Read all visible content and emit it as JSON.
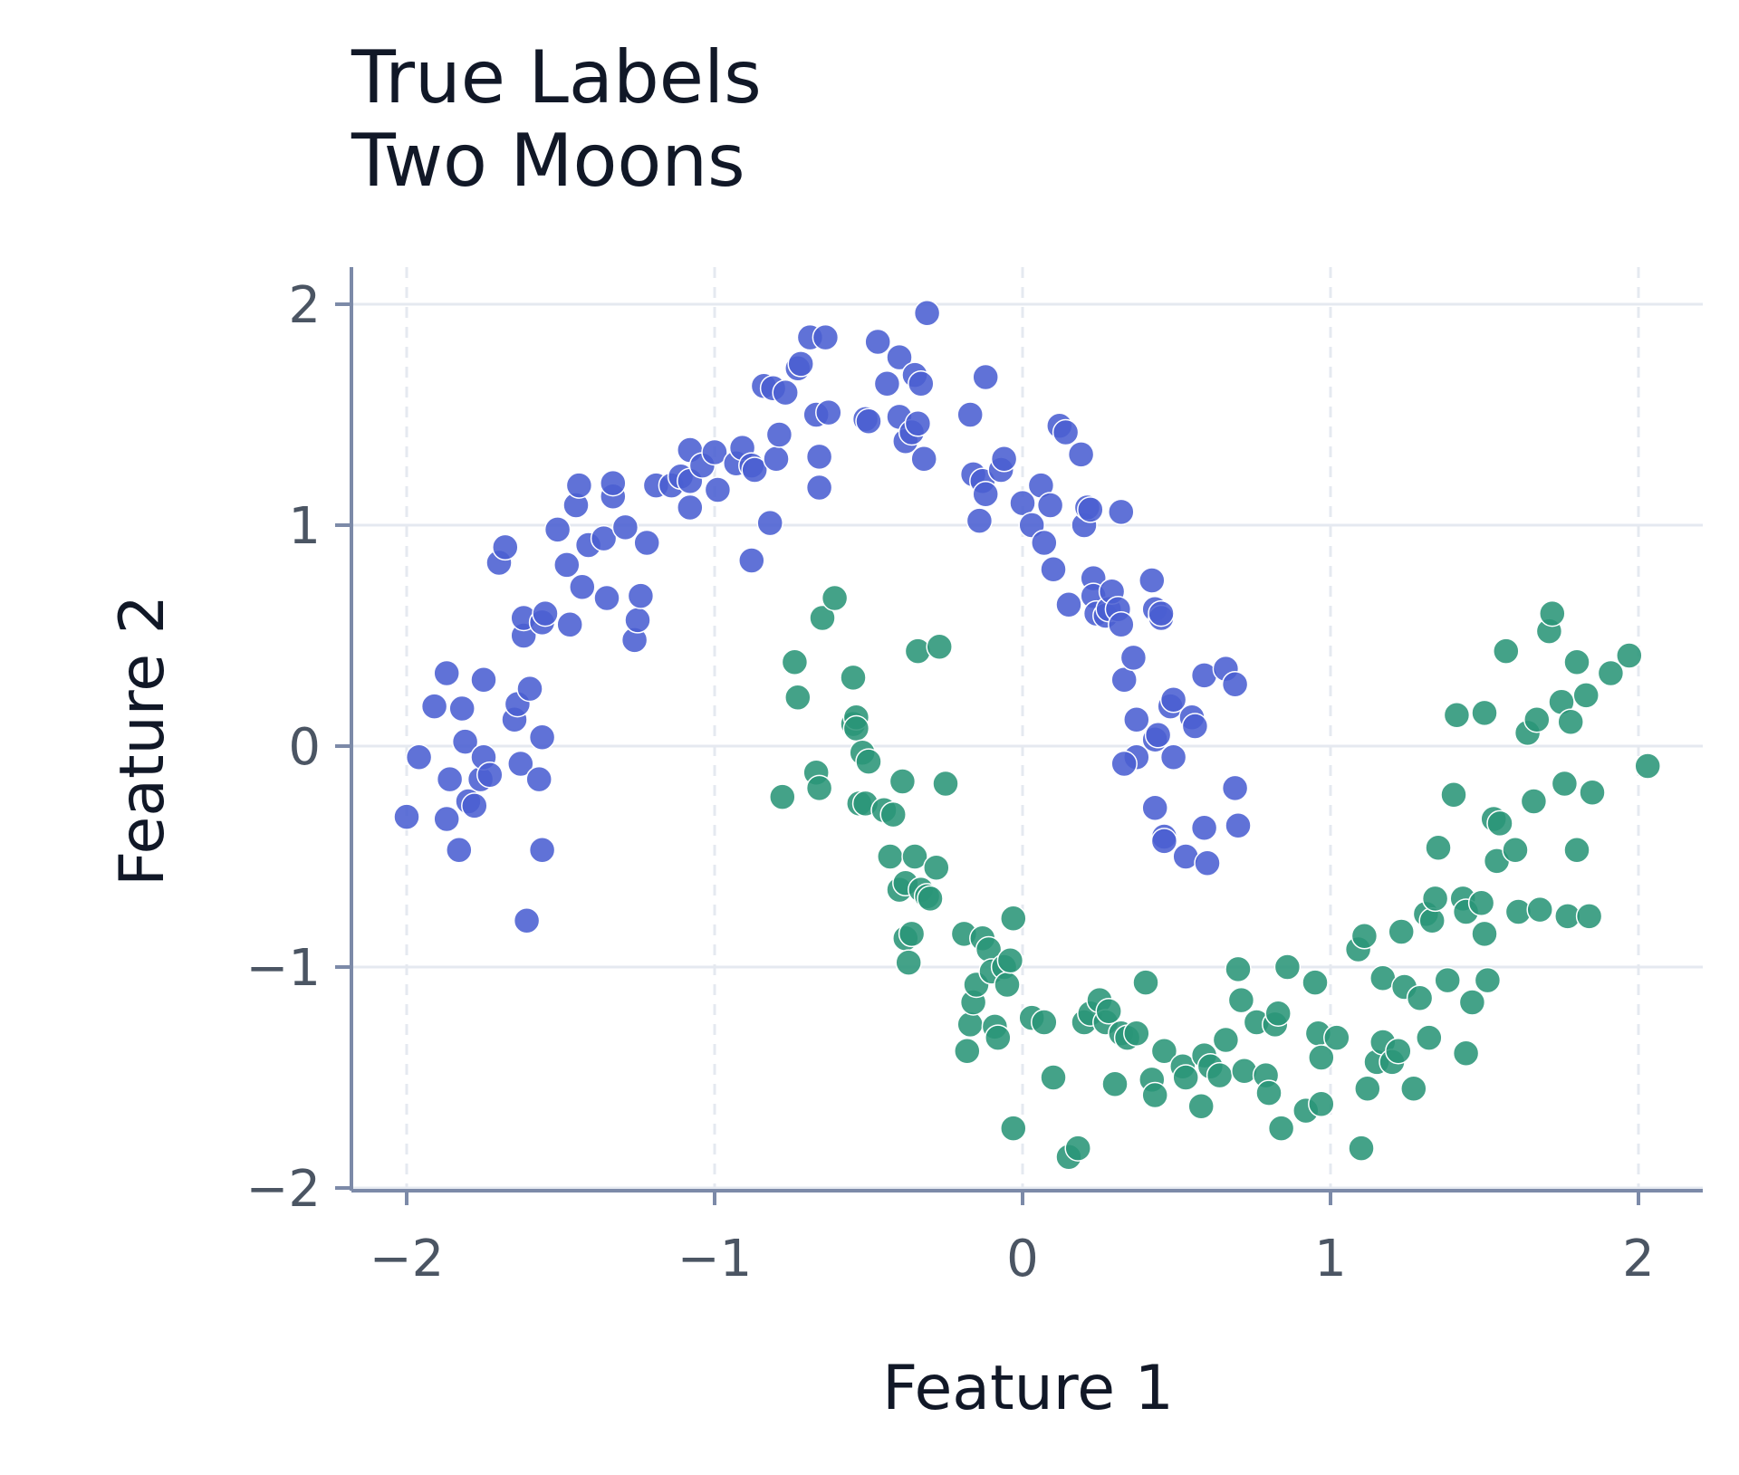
{
  "chart_data": {
    "type": "scatter",
    "title": "True Labels",
    "subtitle": "Two Moons",
    "xlabel": "Feature 1",
    "ylabel": "Feature 2",
    "xlim": [
      -2.18,
      2.22
    ],
    "ylim": [
      -2.05,
      2.15
    ],
    "xticks": [
      -2,
      -1,
      0,
      1,
      2
    ],
    "yticks": [
      -2,
      -1,
      0,
      1,
      2
    ],
    "xtick_labels": [
      "−2",
      "−1",
      "0",
      "1",
      "2"
    ],
    "ytick_labels": [
      "−2",
      "−1",
      "0",
      "1",
      "2"
    ],
    "grid": true,
    "colors": {
      "upper": "#4a5fd1",
      "lower": "#2a9577",
      "grid": "#e5e9f0",
      "axis": "#7c8aa8"
    },
    "series": [
      {
        "color": "#4a5fd1",
        "points": [
          [
            -2.0,
            -0.32
          ],
          [
            -1.96,
            -0.05
          ],
          [
            -1.91,
            0.18
          ],
          [
            -1.87,
            0.33
          ],
          [
            -1.86,
            -0.15
          ],
          [
            -1.87,
            -0.33
          ],
          [
            -1.83,
            -0.47
          ],
          [
            -1.82,
            0.17
          ],
          [
            -1.81,
            0.02
          ],
          [
            -1.8,
            -0.25
          ],
          [
            -1.78,
            -0.27
          ],
          [
            -1.76,
            -0.15
          ],
          [
            -1.75,
            -0.05
          ],
          [
            -1.75,
            0.3
          ],
          [
            -1.73,
            -0.13
          ],
          [
            -1.7,
            0.83
          ],
          [
            -1.68,
            0.9
          ],
          [
            -1.65,
            0.12
          ],
          [
            -1.64,
            0.19
          ],
          [
            -1.63,
            -0.08
          ],
          [
            -1.62,
            0.5
          ],
          [
            -1.62,
            0.58
          ],
          [
            -1.61,
            -0.79
          ],
          [
            -1.6,
            0.26
          ],
          [
            -1.57,
            -0.15
          ],
          [
            -1.56,
            0.04
          ],
          [
            -1.56,
            -0.47
          ],
          [
            -1.56,
            0.56
          ],
          [
            -1.55,
            0.6
          ],
          [
            -1.51,
            0.98
          ],
          [
            -1.48,
            0.82
          ],
          [
            -1.47,
            0.55
          ],
          [
            -1.45,
            1.09
          ],
          [
            -1.44,
            1.18
          ],
          [
            -1.43,
            0.72
          ],
          [
            -1.41,
            0.91
          ],
          [
            -1.36,
            0.94
          ],
          [
            -1.35,
            0.67
          ],
          [
            -1.33,
            1.13
          ],
          [
            -1.33,
            1.19
          ],
          [
            -1.29,
            0.99
          ],
          [
            -1.26,
            0.48
          ],
          [
            -1.25,
            0.57
          ],
          [
            -1.24,
            0.68
          ],
          [
            -1.22,
            0.92
          ],
          [
            -1.19,
            1.18
          ],
          [
            -1.14,
            1.18
          ],
          [
            -1.11,
            1.22
          ],
          [
            -1.08,
            1.2
          ],
          [
            -1.08,
            1.34
          ],
          [
            -1.08,
            1.08
          ],
          [
            -1.04,
            1.27
          ],
          [
            -1.0,
            1.33
          ],
          [
            -0.99,
            1.16
          ],
          [
            -0.93,
            1.28
          ],
          [
            -0.91,
            1.35
          ],
          [
            -0.88,
            0.84
          ],
          [
            -0.88,
            1.27
          ],
          [
            -0.87,
            1.25
          ],
          [
            -0.84,
            1.63
          ],
          [
            -0.82,
            1.01
          ],
          [
            -0.81,
            1.62
          ],
          [
            -0.8,
            1.3
          ],
          [
            -0.79,
            1.41
          ],
          [
            -0.77,
            1.6
          ],
          [
            -0.73,
            1.71
          ],
          [
            -0.72,
            1.73
          ],
          [
            -0.69,
            1.85
          ],
          [
            -0.67,
            1.5
          ],
          [
            -0.66,
            1.17
          ],
          [
            -0.66,
            1.31
          ],
          [
            -0.64,
            1.85
          ],
          [
            -0.63,
            1.51
          ],
          [
            -0.51,
            1.48
          ],
          [
            -0.5,
            1.47
          ],
          [
            -0.47,
            1.83
          ],
          [
            -0.44,
            1.64
          ],
          [
            -0.4,
            1.76
          ],
          [
            -0.4,
            1.49
          ],
          [
            -0.38,
            1.38
          ],
          [
            -0.36,
            1.42
          ],
          [
            -0.35,
            1.68
          ],
          [
            -0.34,
            1.46
          ],
          [
            -0.33,
            1.64
          ],
          [
            -0.32,
            1.3
          ],
          [
            -0.31,
            1.96
          ],
          [
            -0.17,
            1.5
          ],
          [
            -0.16,
            1.23
          ],
          [
            -0.14,
            1.02
          ],
          [
            -0.13,
            1.2
          ],
          [
            -0.12,
            1.14
          ],
          [
            -0.12,
            1.67
          ],
          [
            -0.07,
            1.25
          ],
          [
            -0.06,
            1.3
          ],
          [
            0.0,
            1.1
          ],
          [
            0.03,
            1.0
          ],
          [
            0.06,
            1.18
          ],
          [
            0.07,
            0.92
          ],
          [
            0.09,
            1.09
          ],
          [
            0.1,
            0.8
          ],
          [
            0.12,
            1.45
          ],
          [
            0.14,
            1.42
          ],
          [
            0.15,
            0.64
          ],
          [
            0.19,
            1.32
          ],
          [
            0.2,
            1.0
          ],
          [
            0.21,
            1.08
          ],
          [
            0.22,
            1.07
          ],
          [
            0.23,
            0.76
          ],
          [
            0.23,
            0.68
          ],
          [
            0.24,
            0.6
          ],
          [
            0.27,
            0.59
          ],
          [
            0.28,
            0.62
          ],
          [
            0.29,
            0.7
          ],
          [
            0.31,
            0.62
          ],
          [
            0.32,
            0.55
          ],
          [
            0.32,
            1.06
          ],
          [
            0.33,
            0.3
          ],
          [
            0.36,
            0.4
          ],
          [
            0.37,
            -0.05
          ],
          [
            0.37,
            0.12
          ],
          [
            0.33,
            -0.08
          ],
          [
            0.42,
            0.75
          ],
          [
            0.43,
            0.62
          ],
          [
            0.43,
            -0.28
          ],
          [
            0.43,
            0.03
          ],
          [
            0.44,
            0.05
          ],
          [
            0.45,
            0.58
          ],
          [
            0.45,
            0.6
          ],
          [
            0.46,
            -0.41
          ],
          [
            0.46,
            -0.43
          ],
          [
            0.48,
            0.18
          ],
          [
            0.49,
            0.21
          ],
          [
            0.49,
            -0.05
          ],
          [
            0.53,
            -0.5
          ],
          [
            0.55,
            0.13
          ],
          [
            0.56,
            0.09
          ],
          [
            0.59,
            -0.37
          ],
          [
            0.59,
            0.32
          ],
          [
            0.6,
            -0.53
          ],
          [
            0.66,
            0.35
          ],
          [
            0.69,
            -0.19
          ],
          [
            0.69,
            0.28
          ],
          [
            0.7,
            -0.36
          ]
        ]
      },
      {
        "color": "#2a9577",
        "points": [
          [
            -0.78,
            -0.23
          ],
          [
            -0.74,
            0.38
          ],
          [
            -0.73,
            0.22
          ],
          [
            -0.67,
            -0.12
          ],
          [
            -0.66,
            -0.19
          ],
          [
            -0.65,
            0.58
          ],
          [
            -0.61,
            0.67
          ],
          [
            -0.55,
            0.31
          ],
          [
            -0.55,
            0.1
          ],
          [
            -0.54,
            0.13
          ],
          [
            -0.54,
            0.08
          ],
          [
            -0.53,
            -0.26
          ],
          [
            -0.52,
            -0.03
          ],
          [
            -0.51,
            -0.26
          ],
          [
            -0.5,
            -0.07
          ],
          [
            -0.45,
            -0.29
          ],
          [
            -0.43,
            -0.5
          ],
          [
            -0.42,
            -0.31
          ],
          [
            -0.4,
            -0.65
          ],
          [
            -0.39,
            -0.16
          ],
          [
            -0.38,
            -0.62
          ],
          [
            -0.38,
            -0.87
          ],
          [
            -0.37,
            -0.98
          ],
          [
            -0.36,
            -0.85
          ],
          [
            -0.35,
            -0.5
          ],
          [
            -0.34,
            0.43
          ],
          [
            -0.33,
            -0.65
          ],
          [
            -0.31,
            -0.68
          ],
          [
            -0.3,
            -0.69
          ],
          [
            -0.28,
            -0.55
          ],
          [
            -0.27,
            0.45
          ],
          [
            -0.25,
            -0.17
          ],
          [
            -0.19,
            -0.85
          ],
          [
            -0.18,
            -1.38
          ],
          [
            -0.17,
            -1.26
          ],
          [
            -0.16,
            -1.16
          ],
          [
            -0.15,
            -1.08
          ],
          [
            -0.13,
            -0.87
          ],
          [
            -0.11,
            -0.92
          ],
          [
            -0.1,
            -1.02
          ],
          [
            -0.09,
            -1.27
          ],
          [
            -0.08,
            -1.32
          ],
          [
            -0.06,
            -1.0
          ],
          [
            -0.05,
            -1.08
          ],
          [
            -0.04,
            -0.97
          ],
          [
            -0.03,
            -0.78
          ],
          [
            -0.03,
            -1.73
          ],
          [
            0.03,
            -1.23
          ],
          [
            0.07,
            -1.25
          ],
          [
            0.1,
            -1.5
          ],
          [
            0.15,
            -1.86
          ],
          [
            0.18,
            -1.82
          ],
          [
            0.2,
            -1.25
          ],
          [
            0.22,
            -1.21
          ],
          [
            0.25,
            -1.15
          ],
          [
            0.27,
            -1.25
          ],
          [
            0.28,
            -1.2
          ],
          [
            0.3,
            -1.53
          ],
          [
            0.32,
            -1.3
          ],
          [
            0.34,
            -1.32
          ],
          [
            0.37,
            -1.3
          ],
          [
            0.4,
            -1.07
          ],
          [
            0.42,
            -1.51
          ],
          [
            0.43,
            -1.58
          ],
          [
            0.46,
            -1.38
          ],
          [
            0.52,
            -1.45
          ],
          [
            0.53,
            -1.5
          ],
          [
            0.58,
            -1.63
          ],
          [
            0.59,
            -1.4
          ],
          [
            0.61,
            -1.45
          ],
          [
            0.64,
            -1.49
          ],
          [
            0.66,
            -1.33
          ],
          [
            0.7,
            -1.01
          ],
          [
            0.71,
            -1.15
          ],
          [
            0.72,
            -1.47
          ],
          [
            0.76,
            -1.25
          ],
          [
            0.79,
            -1.49
          ],
          [
            0.8,
            -1.57
          ],
          [
            0.82,
            -1.26
          ],
          [
            0.83,
            -1.21
          ],
          [
            0.84,
            -1.73
          ],
          [
            0.86,
            -1.0
          ],
          [
            0.92,
            -1.65
          ],
          [
            0.95,
            -1.07
          ],
          [
            0.96,
            -1.3
          ],
          [
            0.97,
            -1.41
          ],
          [
            0.97,
            -1.62
          ],
          [
            1.02,
            -1.32
          ],
          [
            1.09,
            -0.92
          ],
          [
            1.1,
            -1.82
          ],
          [
            1.11,
            -0.86
          ],
          [
            1.12,
            -1.55
          ],
          [
            1.15,
            -1.43
          ],
          [
            1.17,
            -1.34
          ],
          [
            1.17,
            -1.05
          ],
          [
            1.2,
            -1.43
          ],
          [
            1.22,
            -1.38
          ],
          [
            1.23,
            -0.84
          ],
          [
            1.24,
            -1.09
          ],
          [
            1.27,
            -1.55
          ],
          [
            1.29,
            -1.14
          ],
          [
            1.31,
            -0.76
          ],
          [
            1.32,
            -1.32
          ],
          [
            1.33,
            -0.79
          ],
          [
            1.34,
            -0.69
          ],
          [
            1.35,
            -0.46
          ],
          [
            1.38,
            -1.06
          ],
          [
            1.4,
            -0.22
          ],
          [
            1.41,
            0.14
          ],
          [
            1.43,
            -0.69
          ],
          [
            1.44,
            -1.39
          ],
          [
            1.44,
            -0.75
          ],
          [
            1.46,
            -1.16
          ],
          [
            1.49,
            -0.71
          ],
          [
            1.5,
            -0.85
          ],
          [
            1.51,
            -1.06
          ],
          [
            1.5,
            0.15
          ],
          [
            1.53,
            -0.33
          ],
          [
            1.54,
            -0.52
          ],
          [
            1.55,
            -0.35
          ],
          [
            1.57,
            0.43
          ],
          [
            1.6,
            -0.47
          ],
          [
            1.61,
            -0.75
          ],
          [
            1.64,
            0.06
          ],
          [
            1.66,
            -0.25
          ],
          [
            1.67,
            0.12
          ],
          [
            1.68,
            -0.74
          ],
          [
            1.71,
            0.52
          ],
          [
            1.72,
            0.6
          ],
          [
            1.75,
            0.2
          ],
          [
            1.76,
            -0.17
          ],
          [
            1.77,
            -0.77
          ],
          [
            1.78,
            0.11
          ],
          [
            1.8,
            -0.47
          ],
          [
            1.8,
            0.38
          ],
          [
            1.85,
            -0.21
          ],
          [
            1.83,
            0.23
          ],
          [
            1.84,
            -0.77
          ],
          [
            1.91,
            0.33
          ],
          [
            1.97,
            0.41
          ],
          [
            2.03,
            -0.09
          ]
        ]
      }
    ]
  }
}
